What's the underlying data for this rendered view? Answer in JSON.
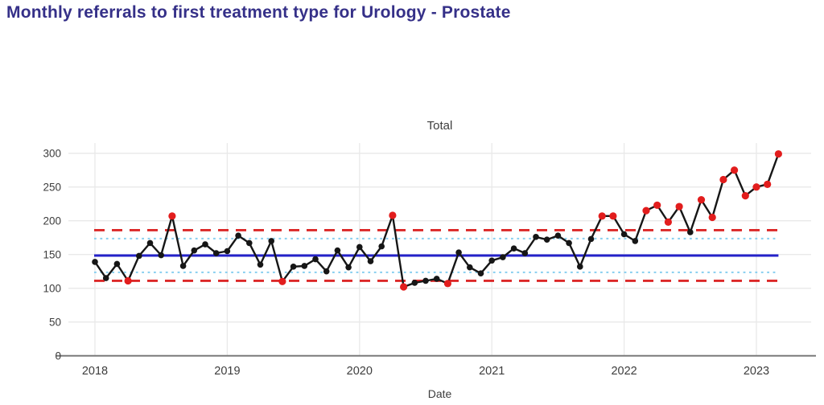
{
  "header": {
    "title": "Monthly referrals to first treatment type for Urology - Prostate",
    "title_color": "#353088"
  },
  "chart_data": {
    "type": "line",
    "subtype": "spc-control-chart",
    "title": "Monthly referrals to first treatment type for Urology - Prostate",
    "subtitle": "Total",
    "xlabel": "Date",
    "ylabel": "",
    "x_tick_labels": [
      "2018",
      "2019",
      "2020",
      "2021",
      "2022",
      "2023"
    ],
    "y_ticks": [
      0,
      50,
      100,
      150,
      200,
      250,
      300
    ],
    "ylim": [
      0,
      312
    ],
    "grid": true,
    "legend": "none",
    "control_lines": {
      "mean": 148.5,
      "upper_control_limit": 186,
      "lower_control_limit": 111,
      "upper_two_sigma": 173.5,
      "lower_two_sigma": 123.5
    },
    "colors": {
      "series_line": "#161616",
      "common_cause_point": "#161616",
      "special_cause_point": "#e21d1d",
      "mean_line": "#2421c9",
      "control_limit_line": "#dc2828",
      "two_sigma_line": "#8ed1f0",
      "gridline": "#e9e9e9",
      "axis_line": "#7a7a7a",
      "tick_text": "#3d3d3d"
    },
    "points": [
      {
        "date": "2018-01",
        "value": 139,
        "special": false
      },
      {
        "date": "2018-02",
        "value": 115,
        "special": false
      },
      {
        "date": "2018-03",
        "value": 136,
        "special": false
      },
      {
        "date": "2018-04",
        "value": 111,
        "special": true
      },
      {
        "date": "2018-05",
        "value": 148,
        "special": false
      },
      {
        "date": "2018-06",
        "value": 167,
        "special": false
      },
      {
        "date": "2018-07",
        "value": 149,
        "special": false
      },
      {
        "date": "2018-08",
        "value": 207,
        "special": true
      },
      {
        "date": "2018-09",
        "value": 133,
        "special": false
      },
      {
        "date": "2018-10",
        "value": 156,
        "special": false
      },
      {
        "date": "2018-11",
        "value": 165,
        "special": false
      },
      {
        "date": "2018-12",
        "value": 152,
        "special": false
      },
      {
        "date": "2019-01",
        "value": 155,
        "special": false
      },
      {
        "date": "2019-02",
        "value": 178,
        "special": false
      },
      {
        "date": "2019-03",
        "value": 167,
        "special": false
      },
      {
        "date": "2019-04",
        "value": 135,
        "special": false
      },
      {
        "date": "2019-05",
        "value": 170,
        "special": false
      },
      {
        "date": "2019-06",
        "value": 110,
        "special": true
      },
      {
        "date": "2019-07",
        "value": 132,
        "special": false
      },
      {
        "date": "2019-08",
        "value": 133,
        "special": false
      },
      {
        "date": "2019-09",
        "value": 143,
        "special": false
      },
      {
        "date": "2019-10",
        "value": 125,
        "special": false
      },
      {
        "date": "2019-11",
        "value": 156,
        "special": false
      },
      {
        "date": "2019-12",
        "value": 131,
        "special": false
      },
      {
        "date": "2020-01",
        "value": 161,
        "special": false
      },
      {
        "date": "2020-02",
        "value": 140,
        "special": false
      },
      {
        "date": "2020-03",
        "value": 162,
        "special": false
      },
      {
        "date": "2020-04",
        "value": 208,
        "special": true
      },
      {
        "date": "2020-05",
        "value": 102,
        "special": true
      },
      {
        "date": "2020-06",
        "value": 108,
        "special": false
      },
      {
        "date": "2020-07",
        "value": 111,
        "special": false
      },
      {
        "date": "2020-08",
        "value": 114,
        "special": false
      },
      {
        "date": "2020-09",
        "value": 107,
        "special": true
      },
      {
        "date": "2020-10",
        "value": 153,
        "special": false
      },
      {
        "date": "2020-11",
        "value": 131,
        "special": false
      },
      {
        "date": "2020-12",
        "value": 122,
        "special": false
      },
      {
        "date": "2021-01",
        "value": 141,
        "special": false
      },
      {
        "date": "2021-02",
        "value": 146,
        "special": false
      },
      {
        "date": "2021-03",
        "value": 159,
        "special": false
      },
      {
        "date": "2021-04",
        "value": 152,
        "special": false
      },
      {
        "date": "2021-05",
        "value": 176,
        "special": false
      },
      {
        "date": "2021-06",
        "value": 172,
        "special": false
      },
      {
        "date": "2021-07",
        "value": 178,
        "special": false
      },
      {
        "date": "2021-08",
        "value": 167,
        "special": false
      },
      {
        "date": "2021-09",
        "value": 132,
        "special": false
      },
      {
        "date": "2021-10",
        "value": 173,
        "special": false
      },
      {
        "date": "2021-11",
        "value": 207,
        "special": true
      },
      {
        "date": "2021-12",
        "value": 207,
        "special": true
      },
      {
        "date": "2022-01",
        "value": 180,
        "special": false
      },
      {
        "date": "2022-02",
        "value": 170,
        "special": false
      },
      {
        "date": "2022-03",
        "value": 215,
        "special": true
      },
      {
        "date": "2022-04",
        "value": 223,
        "special": true
      },
      {
        "date": "2022-05",
        "value": 198,
        "special": true
      },
      {
        "date": "2022-06",
        "value": 221,
        "special": true
      },
      {
        "date": "2022-07",
        "value": 183,
        "special": false
      },
      {
        "date": "2022-08",
        "value": 231,
        "special": true
      },
      {
        "date": "2022-09",
        "value": 205,
        "special": true
      },
      {
        "date": "2022-10",
        "value": 261,
        "special": true
      },
      {
        "date": "2022-11",
        "value": 275,
        "special": true
      },
      {
        "date": "2022-12",
        "value": 237,
        "special": true
      },
      {
        "date": "2023-01",
        "value": 250,
        "special": true
      },
      {
        "date": "2023-02",
        "value": 254,
        "special": true
      },
      {
        "date": "2023-03",
        "value": 299,
        "special": true
      }
    ]
  }
}
